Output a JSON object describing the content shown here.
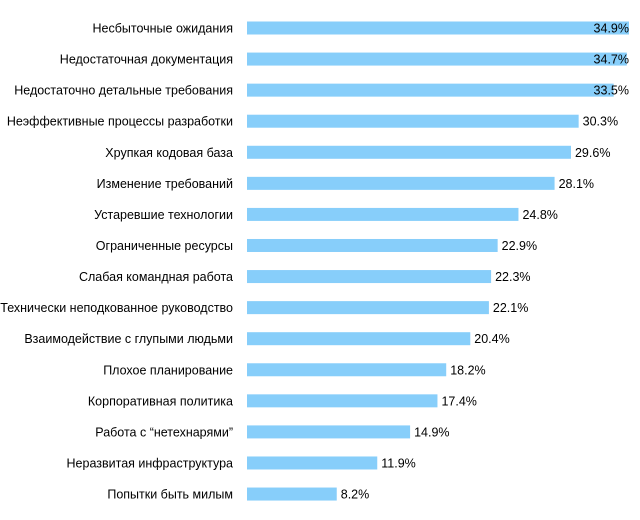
{
  "chart_data": {
    "type": "bar",
    "orientation": "horizontal",
    "title": "",
    "xlabel": "",
    "ylabel": "",
    "value_suffix": "%",
    "xlim": [
      0,
      34.9
    ],
    "grid": false,
    "bar_color": "#87CEFA",
    "categories": [
      "Несбыточные ожидания",
      "Недостаточная документация",
      "Недостаточно детальные требования",
      "Неэффективные процессы разработки",
      "Хрупкая кодовая база",
      "Изменение требований",
      "Устаревшие технологии",
      "Ограниченные ресурсы",
      "Слабая командная работа",
      "Технически неподкованное руководство",
      "Взаимодействие с глупыми людьми",
      "Плохое планирование",
      "Корпоративная политика",
      "Работа с “нетехнарями”",
      "Неразвитая инфраструктура",
      "Попытки быть милым"
    ],
    "values": [
      34.9,
      34.7,
      33.5,
      30.3,
      29.6,
      28.1,
      24.8,
      22.9,
      22.3,
      22.1,
      20.4,
      18.2,
      17.4,
      14.9,
      11.9,
      8.2
    ],
    "value_labels": [
      "34.9%",
      "34.7%",
      "33.5%",
      "30.3%",
      "29.6%",
      "28.1%",
      "24.8%",
      "22.9%",
      "22.3%",
      "22.1%",
      "20.4%",
      "18.2%",
      "17.4%",
      "14.9%",
      "11.9%",
      "8.2%"
    ]
  }
}
